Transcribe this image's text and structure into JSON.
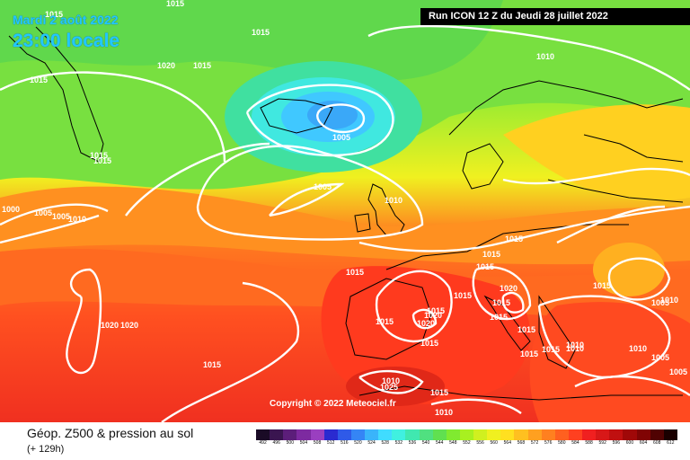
{
  "header": {
    "valid_date": "Mardi 2 août 2022",
    "valid_time": "23:00 locale",
    "run_info": "Run ICON 12 Z du Jeudi 28 juillet 2022"
  },
  "footer": {
    "parameter_title": "Géop. Z500 & pression au sol",
    "lead_time": "(+ 129h)"
  },
  "copyright": "Copyright © 2022 Meteociel.fr",
  "colorbar": {
    "labels": [
      "492",
      "496",
      "500",
      "504",
      "508",
      "512",
      "516",
      "520",
      "524",
      "528",
      "532",
      "536",
      "540",
      "544",
      "548",
      "552",
      "556",
      "560",
      "564",
      "568",
      "572",
      "576",
      "580",
      "584",
      "588",
      "592",
      "596",
      "600",
      "604",
      "608",
      "612"
    ],
    "colors": [
      "#1a0b26",
      "#3a1550",
      "#5c1e7a",
      "#7d2aa0",
      "#9a3fc0",
      "#2a2ad0",
      "#2f5ae8",
      "#3585f5",
      "#3ab4fa",
      "#40dcff",
      "#40f0e0",
      "#40e8b0",
      "#50e080",
      "#60e050",
      "#80ea30",
      "#a8f020",
      "#d0f020",
      "#f0f020",
      "#ffe020",
      "#ffc020",
      "#ffa020",
      "#ff8020",
      "#ff6020",
      "#ff4020",
      "#f02020",
      "#d81818",
      "#c01010",
      "#a00808",
      "#800404",
      "#500202",
      "#1a0000"
    ]
  },
  "isobar_labels": [
    {
      "text": "1015"
    },
    {
      "text": "1015"
    },
    {
      "text": "1015"
    },
    {
      "text": "1020"
    },
    {
      "text": "1015"
    },
    {
      "text": "1015"
    },
    {
      "text": "1010"
    },
    {
      "text": "1005"
    },
    {
      "text": "1015"
    },
    {
      "text": "1015"
    },
    {
      "text": "1005"
    },
    {
      "text": "1010"
    },
    {
      "text": "1000"
    },
    {
      "text": "1005"
    },
    {
      "text": "1005"
    },
    {
      "text": "1010"
    },
    {
      "text": "1015"
    },
    {
      "text": "1015"
    },
    {
      "text": "1015"
    },
    {
      "text": "1015"
    },
    {
      "text": "1015"
    },
    {
      "text": "1015"
    },
    {
      "text": "1020"
    },
    {
      "text": "1015"
    },
    {
      "text": "1015"
    },
    {
      "text": "1015"
    },
    {
      "text": "1015"
    },
    {
      "text": "1020"
    },
    {
      "text": "1015"
    },
    {
      "text": "1015"
    },
    {
      "text": "1015"
    },
    {
      "text": "1010"
    },
    {
      "text": "1010"
    },
    {
      "text": "1005"
    },
    {
      "text": "1020"
    },
    {
      "text": "1020"
    },
    {
      "text": "1015"
    },
    {
      "text": "1015"
    },
    {
      "text": "1005"
    },
    {
      "text": "1010"
    },
    {
      "text": "1010"
    },
    {
      "text": "1010"
    },
    {
      "text": "1015"
    },
    {
      "text": "1025"
    },
    {
      "text": "1005"
    },
    {
      "text": "1010"
    },
    {
      "text": "1020"
    }
  ]
}
